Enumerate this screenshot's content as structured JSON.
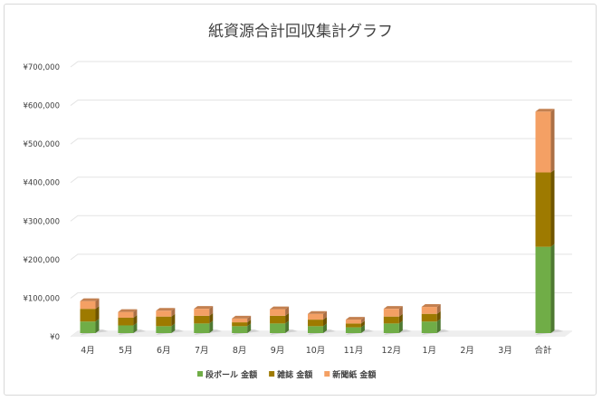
{
  "chart_data": {
    "type": "bar",
    "stacked": true,
    "title": "紙資源合計回収集計グラフ",
    "xlabel": "",
    "ylabel": "",
    "ylim": [
      0,
      700000
    ],
    "yticks": [
      0,
      100000,
      200000,
      300000,
      400000,
      500000,
      600000,
      700000
    ],
    "ytick_labels": [
      "¥0",
      "¥100,000",
      "¥200,000",
      "¥300,000",
      "¥400,000",
      "¥500,000",
      "¥600,000",
      "¥700,000"
    ],
    "categories": [
      "4月",
      "5月",
      "6月",
      "7月",
      "8月",
      "9月",
      "10月",
      "11月",
      "12月",
      "1月",
      "2月",
      "3月",
      "合計"
    ],
    "series": [
      {
        "name": "段ボール 金額",
        "color": "#70ad47",
        "values": [
          30000,
          20000,
          18000,
          25000,
          18000,
          25000,
          18000,
          15000,
          25000,
          30000,
          0,
          0,
          224000
        ]
      },
      {
        "name": "雑誌 金額",
        "color": "#9e7a00",
        "values": [
          33000,
          20000,
          25000,
          20000,
          10000,
          20000,
          17000,
          10000,
          18000,
          20000,
          0,
          0,
          193000
        ]
      },
      {
        "name": "新聞紙 金額",
        "color": "#f4a064",
        "values": [
          20000,
          15000,
          15000,
          18000,
          10000,
          17000,
          15000,
          10000,
          20000,
          18000,
          0,
          0,
          158000
        ]
      }
    ],
    "grid": true,
    "legend": "bottom"
  }
}
